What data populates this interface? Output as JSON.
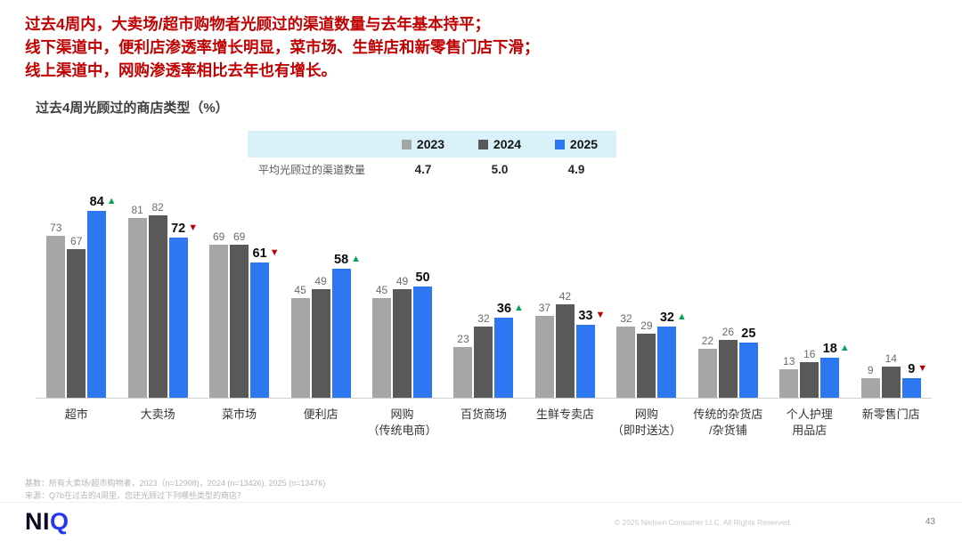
{
  "header": {
    "line1": "过去4周内，大卖场/超市购物者光顾过的渠道数量与去年基本持平；",
    "line2": "线下渠道中，便利店渗透率增长明显，菜市场、生鲜店和新零售门店下滑；",
    "line3": "线上渠道中，网购渗透率相比去年也有增长。"
  },
  "chart_title": "过去4周光顾过的商店类型（%）",
  "legend": {
    "avg_label": "平均光顾过的渠道数量",
    "series": [
      {
        "label": "2023",
        "avg": "4.7"
      },
      {
        "label": "2024",
        "avg": "5.0"
      },
      {
        "label": "2025",
        "avg": "4.9"
      }
    ]
  },
  "chart_data": {
    "type": "bar",
    "title": "过去4周光顾过的商店类型（%）",
    "categories": [
      "超市",
      "大卖场",
      "菜市场",
      "便利店",
      "网购\n（传统电商）",
      "百货商场",
      "生鲜专卖店",
      "网购\n（即时送达）",
      "传统的杂货店\n/杂货铺",
      "个人护理\n用品店",
      "新零售门店"
    ],
    "series": [
      {
        "name": "2023",
        "color": "#a6a6a6",
        "values": [
          73,
          81,
          69,
          45,
          45,
          23,
          37,
          32,
          22,
          13,
          9
        ]
      },
      {
        "name": "2024",
        "color": "#595959",
        "values": [
          67,
          82,
          69,
          49,
          49,
          32,
          42,
          29,
          26,
          16,
          14
        ]
      },
      {
        "name": "2025",
        "color": "#2e77f2",
        "values": [
          84,
          72,
          61,
          58,
          50,
          36,
          33,
          32,
          25,
          18,
          9
        ]
      }
    ],
    "trends": [
      "up",
      "down",
      "down",
      "up",
      "none",
      "up",
      "down",
      "up",
      "none",
      "up",
      "down"
    ],
    "ylim": [
      0,
      90
    ],
    "grid": false,
    "value_labels": true,
    "legend_position": "top"
  },
  "colors": {
    "headline": "#c00000",
    "trend_up": "#00a651",
    "trend_down": "#c00000",
    "legend_bg": "#d9f1f8"
  },
  "footer": {
    "note1": "基数：所有大卖场/超市购物者，2023（n=12908)，2024 (n=13426), 2025 (n=13476)",
    "note2": "来源：Q7b在过去的4周里，您还光顾过下列哪些类型的商店？",
    "logo_ni": "NI",
    "logo_q": "Q",
    "copyright": "© 2025 Nielsen Consumer LLC. All Rights Reserved.",
    "page": "43"
  }
}
